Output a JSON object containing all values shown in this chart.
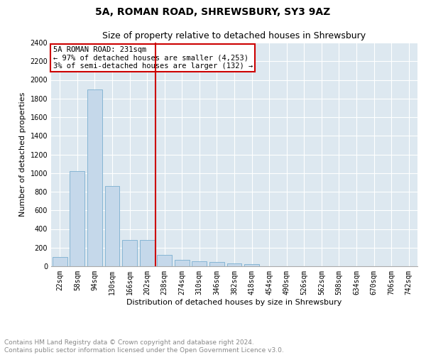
{
  "title": "5A, ROMAN ROAD, SHREWSBURY, SY3 9AZ",
  "subtitle": "Size of property relative to detached houses in Shrewsbury",
  "xlabel": "Distribution of detached houses by size in Shrewsbury",
  "ylabel": "Number of detached properties",
  "categories": [
    "22sqm",
    "58sqm",
    "94sqm",
    "130sqm",
    "166sqm",
    "202sqm",
    "238sqm",
    "274sqm",
    "310sqm",
    "346sqm",
    "382sqm",
    "418sqm",
    "454sqm",
    "490sqm",
    "526sqm",
    "562sqm",
    "598sqm",
    "634sqm",
    "670sqm",
    "706sqm",
    "742sqm"
  ],
  "values": [
    100,
    1020,
    1900,
    860,
    280,
    280,
    120,
    70,
    55,
    45,
    30,
    25,
    0,
    0,
    0,
    0,
    0,
    0,
    0,
    0,
    0
  ],
  "bar_color": "#c5d8ea",
  "bar_edgecolor": "#7aaed0",
  "background_color": "#dde8f0",
  "grid_color": "#ffffff",
  "red_line_index": 5.5,
  "annotation_title": "5A ROMAN ROAD: 231sqm",
  "annotation_line1": "← 97% of detached houses are smaller (4,253)",
  "annotation_line2": "3% of semi-detached houses are larger (132) →",
  "annotation_box_facecolor": "#ffffff",
  "annotation_box_edgecolor": "#cc0000",
  "ylim": [
    0,
    2400
  ],
  "yticks": [
    0,
    200,
    400,
    600,
    800,
    1000,
    1200,
    1400,
    1600,
    1800,
    2000,
    2200,
    2400
  ],
  "footer1": "Contains HM Land Registry data © Crown copyright and database right 2024.",
  "footer2": "Contains public sector information licensed under the Open Government Licence v3.0.",
  "title_fontsize": 10,
  "subtitle_fontsize": 9,
  "axis_label_fontsize": 8,
  "tick_fontsize": 7,
  "annotation_fontsize": 7.5,
  "footer_fontsize": 6.5
}
